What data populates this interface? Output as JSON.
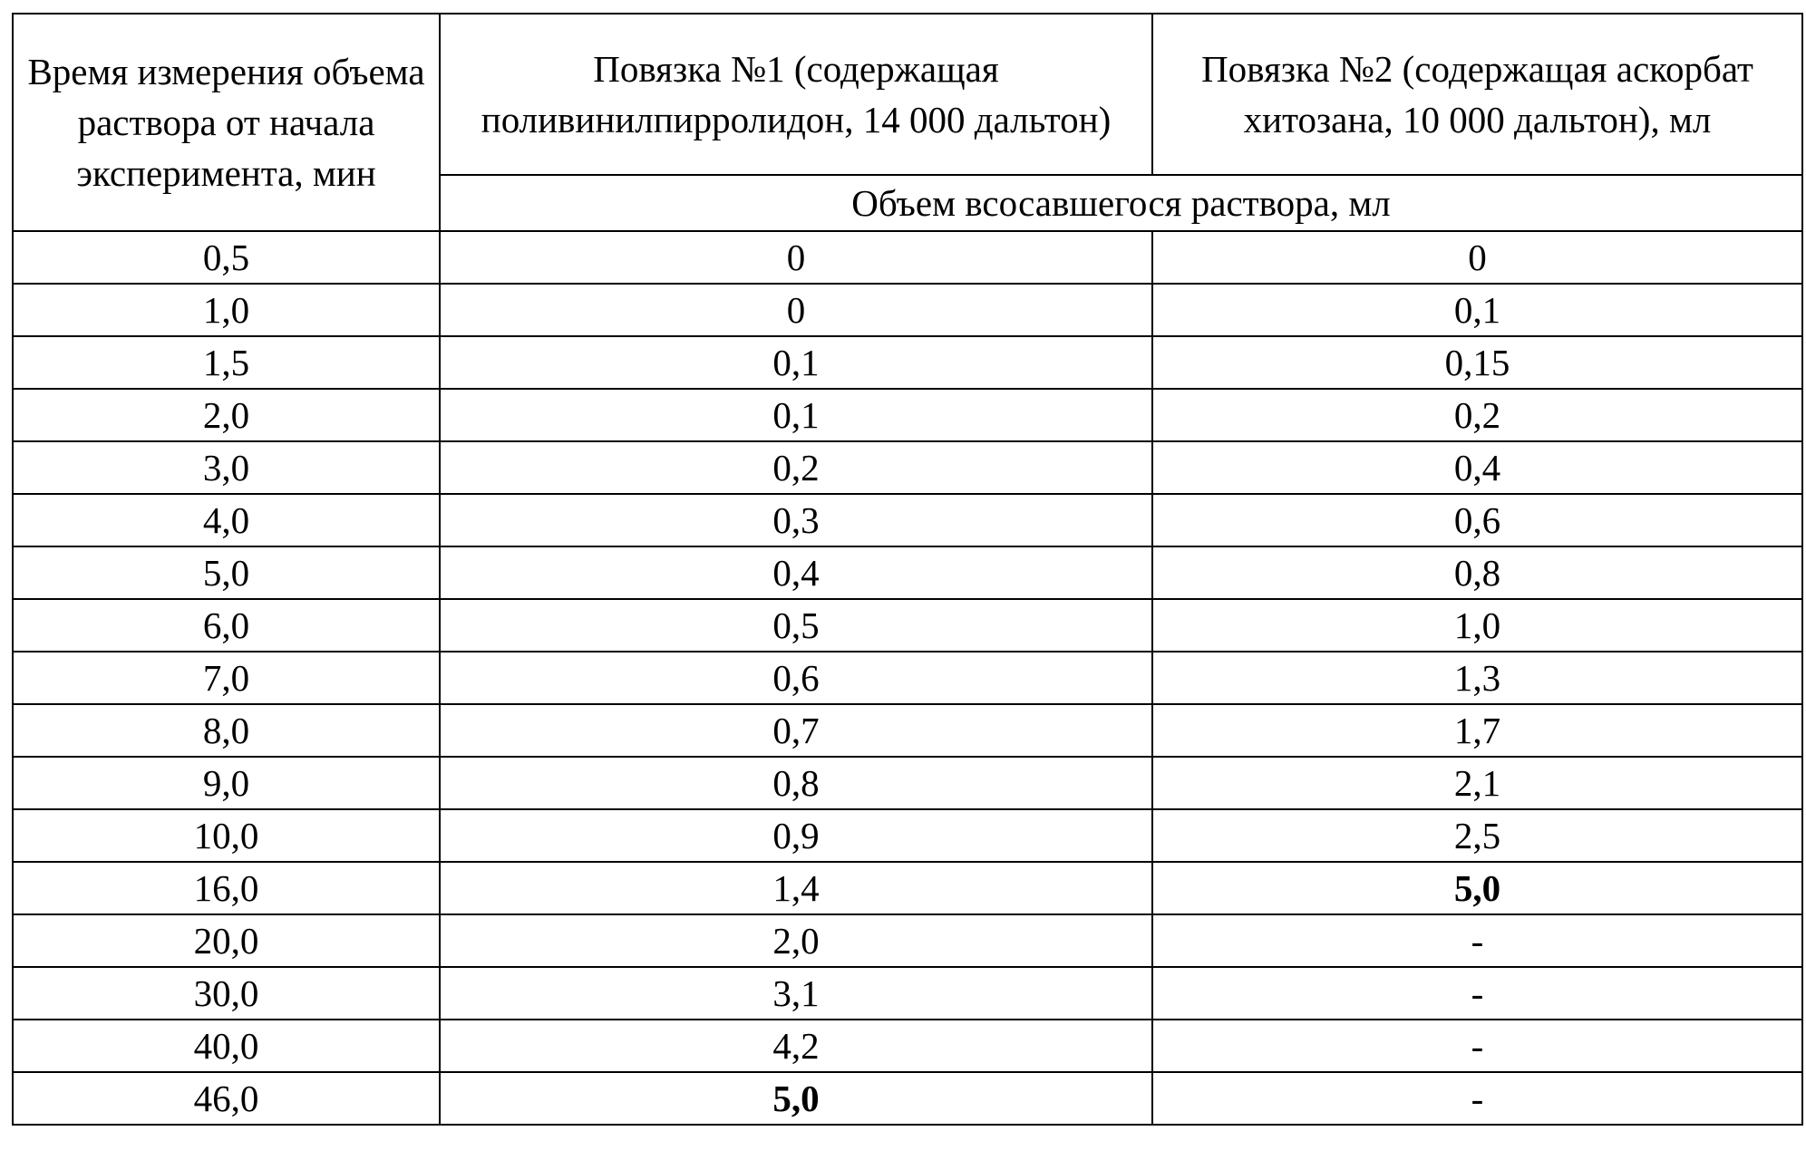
{
  "table": {
    "headers": {
      "time": "Время измерения объема раствора от начала эксперимента, мин",
      "dressing1": "Повязка №1 (содержащая поливинилпирролидон, 14 000 дальтон)",
      "dressing2": "Повязка №2 (содержащая аскорбат хитозана, 10 000 дальтон), мл",
      "volume": "Объем всосавшегося раствора, мл"
    },
    "rows": [
      {
        "time": "0,5",
        "d1": "0",
        "d2": "0"
      },
      {
        "time": "1,0",
        "d1": "0",
        "d2": "0,1"
      },
      {
        "time": "1,5",
        "d1": "0,1",
        "d2": "0,15"
      },
      {
        "time": "2,0",
        "d1": "0,1",
        "d2": "0,2"
      },
      {
        "time": "3,0",
        "d1": "0,2",
        "d2": "0,4"
      },
      {
        "time": "4,0",
        "d1": "0,3",
        "d2": "0,6"
      },
      {
        "time": "5,0",
        "d1": "0,4",
        "d2": "0,8"
      },
      {
        "time": "6,0",
        "d1": "0,5",
        "d2": "1,0"
      },
      {
        "time": "7,0",
        "d1": "0,6",
        "d2": "1,3"
      },
      {
        "time": "8,0",
        "d1": "0,7",
        "d2": "1,7"
      },
      {
        "time": "9,0",
        "d1": "0,8",
        "d2": "2,1"
      },
      {
        "time": "10,0",
        "d1": "0,9",
        "d2": "2,5"
      },
      {
        "time": "16,0",
        "d1": "1,4",
        "d2": "5,0"
      },
      {
        "time": "20,0",
        "d1": "2,0",
        "d2": "-"
      },
      {
        "time": "30,0",
        "d1": "3,1",
        "d2": "-"
      },
      {
        "time": "40,0",
        "d1": "4,2",
        "d2": "-"
      },
      {
        "time": "46,0",
        "d1": "5,0",
        "d2": "-"
      }
    ]
  }
}
